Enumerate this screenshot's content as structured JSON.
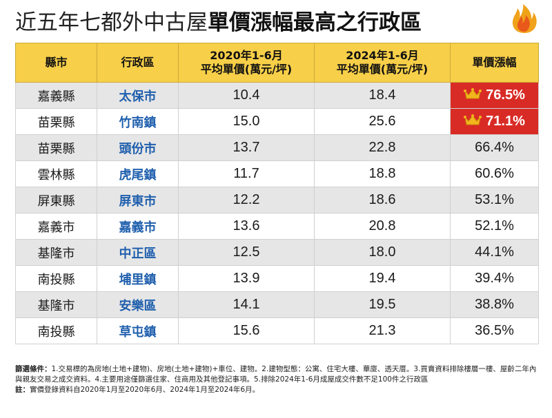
{
  "title": {
    "normal": "近五年七都外中古屋",
    "bold": "單價漲幅最高之行政區"
  },
  "table": {
    "headers": {
      "county": "縣市",
      "district": "行政區",
      "price2020_l1": "2020年1-6月",
      "price2020_l2": "平均單價(萬元/坪)",
      "price2024_l1": "2024年1-6月",
      "price2024_l2": "平均單價(萬元/坪)",
      "growth": "單價漲幅"
    }
  },
  "chart_data": {
    "type": "table",
    "columns": [
      "縣市",
      "行政區",
      "2020年1-6月 平均單價(萬元/坪)",
      "2024年1-6月 平均單價(萬元/坪)",
      "單價漲幅"
    ],
    "rows": [
      {
        "county": "嘉義縣",
        "district": "太保市",
        "p2020": "10.4",
        "p2024": "18.4",
        "growth": "76.5%",
        "highlight": true
      },
      {
        "county": "苗栗縣",
        "district": "竹南鎮",
        "p2020": "15.0",
        "p2024": "25.6",
        "growth": "71.1%",
        "highlight": true
      },
      {
        "county": "苗栗縣",
        "district": "頭份市",
        "p2020": "13.7",
        "p2024": "22.8",
        "growth": "66.4%",
        "highlight": false
      },
      {
        "county": "雲林縣",
        "district": "虎尾鎮",
        "p2020": "11.7",
        "p2024": "18.8",
        "growth": "60.6%",
        "highlight": false
      },
      {
        "county": "屏東縣",
        "district": "屏東市",
        "p2020": "12.2",
        "p2024": "18.6",
        "growth": "53.1%",
        "highlight": false
      },
      {
        "county": "嘉義市",
        "district": "嘉義市",
        "p2020": "13.6",
        "p2024": "20.8",
        "growth": "52.1%",
        "highlight": false
      },
      {
        "county": "基隆市",
        "district": "中正區",
        "p2020": "12.5",
        "p2024": "18.0",
        "growth": "44.1%",
        "highlight": false
      },
      {
        "county": "南投縣",
        "district": "埔里鎮",
        "p2020": "13.9",
        "p2024": "19.4",
        "growth": "39.4%",
        "highlight": false
      },
      {
        "county": "基隆市",
        "district": "安樂區",
        "p2020": "14.1",
        "p2024": "19.5",
        "growth": "38.8%",
        "highlight": false
      },
      {
        "county": "南投縣",
        "district": "草屯鎮",
        "p2020": "15.6",
        "p2024": "21.3",
        "growth": "36.5%",
        "highlight": false
      }
    ]
  },
  "notes": {
    "criteria_label": "篩選條件：",
    "criteria_text": "1.交易標的為房地(土地+建物)、房地(土地+建物)+車位、建物。2.建物型態：公寓、住宅大樓、華廈、透天厝。3.買賣資料排除樓層一樓、屋齡二年內與親友交易之成交資料。4.主要用途僅篩選住家、住商用及其他登記事項。5.排除2024年1-6月成屋成交件數不足100件之行政區",
    "note_label": "註：",
    "note_text": "實價登錄資料自2020年1月至2020年6月、2024年1月至2024年6月。"
  },
  "colors": {
    "header_bg": "#f7cf48",
    "highlight_bg": "#d92b25",
    "district_text": "#1f5fad",
    "stripe": "#e6e6e6"
  },
  "icons": {
    "title": "flame-icon",
    "highlight": "crown-icon"
  }
}
